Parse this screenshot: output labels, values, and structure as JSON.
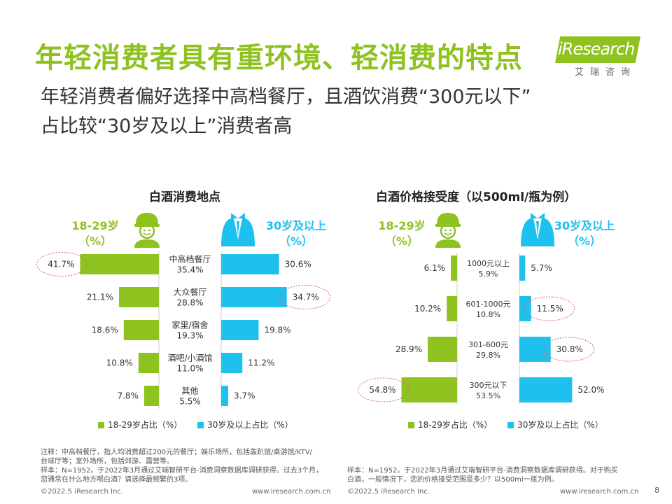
{
  "header": {
    "title": "年轻消费者具有重环境、轻消费的特点",
    "subtitle_line1": "年轻消费者偏好选择中高档餐厅，且酒饮消费“300元以下”",
    "subtitle_line2": "占比较“30岁及以上”消费者高",
    "logo_text": "iResearch",
    "logo_cn": "艾瑞咨询"
  },
  "age_labels": {
    "young_line1": "18-29岁",
    "young_line2": "（%）",
    "older_line1": "30岁及以上",
    "older_line2": "（%）"
  },
  "colors": {
    "green": "#8dc21f",
    "blue": "#1ec0ee",
    "highlight_circle": "#e05a6a"
  },
  "chart_data": [
    {
      "type": "bar",
      "title": "白酒消费地点",
      "categories": [
        "中高档餐厅",
        "大众餐厅",
        "家里/宿舍",
        "酒吧/小酒馆",
        "其他"
      ],
      "category_totals": [
        "35.4%",
        "28.8%",
        "19.3%",
        "11.0%",
        "5.5%"
      ],
      "series": [
        {
          "name": "18-29岁占比（%）",
          "values": [
            41.7,
            21.1,
            18.6,
            10.8,
            7.8
          ],
          "color": "#8dc21f"
        },
        {
          "name": "30岁及以上占比（%）",
          "values": [
            30.6,
            34.7,
            19.8,
            11.2,
            3.7
          ],
          "color": "#1ec0ee"
        }
      ],
      "highlighted": [
        {
          "series": 0,
          "index": 0
        },
        {
          "series": 1,
          "index": 1
        }
      ]
    },
    {
      "type": "bar",
      "title": "白酒价格接受度（以500ml/瓶为例）",
      "categories": [
        "1000元以上",
        "601-1000元",
        "301-600元",
        "300元以下"
      ],
      "category_totals": [
        "5.9%",
        "10.8%",
        "29.8%",
        "53.5%"
      ],
      "series": [
        {
          "name": "18-29岁占比（%）",
          "values": [
            6.1,
            10.2,
            28.9,
            54.8
          ],
          "color": "#8dc21f"
        },
        {
          "name": "30岁及以上占比（%）",
          "values": [
            5.7,
            11.5,
            30.8,
            52.0
          ],
          "color": "#1ec0ee"
        }
      ],
      "highlighted": [
        {
          "series": 1,
          "index": 1
        },
        {
          "series": 1,
          "index": 2
        },
        {
          "series": 0,
          "index": 3
        }
      ]
    }
  ],
  "notes": {
    "left_line1": "注释：中高档餐厅，指人均消费超过200元的餐厅；娱乐场所，包括轰趴馆/桌游馆/KTV/",
    "left_line2": "台球厅等；室外场所，包括郊游、露营等。",
    "left_line3": "样本：N=1952。于2022年3月通过艾瑞智研平台-消费洞察数据库调研获得。过去3个月，",
    "left_line4": "您通常在什么地方喝白酒？请选择最频繁的3项。",
    "right_line1": "样本：N=1952。于2022年3月通过艾瑞智研平台-消费洞察数据库调研获得。对于购买",
    "right_line2": "白酒，一般情况下，您的价格接受范围是多少？以500ml一瓶为例。"
  },
  "footer": {
    "copyright": "©2022.5 iResearch Inc.",
    "website": "www.iresearch.com.cn",
    "page": "8"
  }
}
